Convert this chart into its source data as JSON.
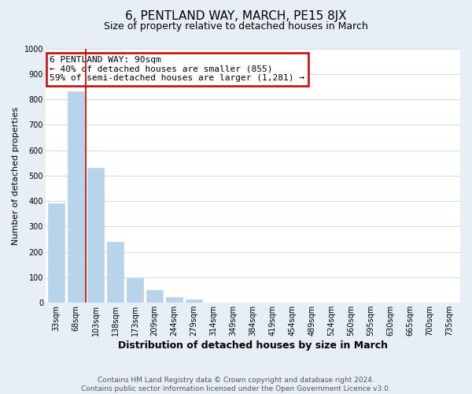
{
  "title": "6, PENTLAND WAY, MARCH, PE15 8JX",
  "subtitle": "Size of property relative to detached houses in March",
  "xlabel": "Distribution of detached houses by size in March",
  "ylabel": "Number of detached properties",
  "bar_labels": [
    "33sqm",
    "68sqm",
    "103sqm",
    "138sqm",
    "173sqm",
    "209sqm",
    "244sqm",
    "279sqm",
    "314sqm",
    "349sqm",
    "384sqm",
    "419sqm",
    "454sqm",
    "489sqm",
    "524sqm",
    "560sqm",
    "595sqm",
    "630sqm",
    "665sqm",
    "700sqm",
    "735sqm"
  ],
  "bar_values": [
    390,
    830,
    530,
    240,
    97,
    52,
    22,
    12,
    0,
    0,
    0,
    0,
    0,
    0,
    0,
    0,
    0,
    0,
    0,
    0,
    0
  ],
  "bar_color": "#b8d4ea",
  "red_line_x": 1.5,
  "annotation_text": "6 PENTLAND WAY: 90sqm\n← 40% of detached houses are smaller (855)\n59% of semi-detached houses are larger (1,281) →",
  "ylim": [
    0,
    1000
  ],
  "yticks": [
    0,
    100,
    200,
    300,
    400,
    500,
    600,
    700,
    800,
    900,
    1000
  ],
  "footer": "Contains HM Land Registry data © Crown copyright and database right 2024.\nContains public sector information licensed under the Open Government Licence v3.0.",
  "bg_color": "#e8eef5",
  "plot_bg_color": "#ffffff",
  "grid_color": "#d0dce8",
  "annotation_box_color": "#ffffff",
  "annotation_border_color": "#cc0000",
  "title_fontsize": 11,
  "subtitle_fontsize": 9,
  "xlabel_fontsize": 9,
  "ylabel_fontsize": 8,
  "tick_fontsize": 7,
  "footer_fontsize": 6.5
}
